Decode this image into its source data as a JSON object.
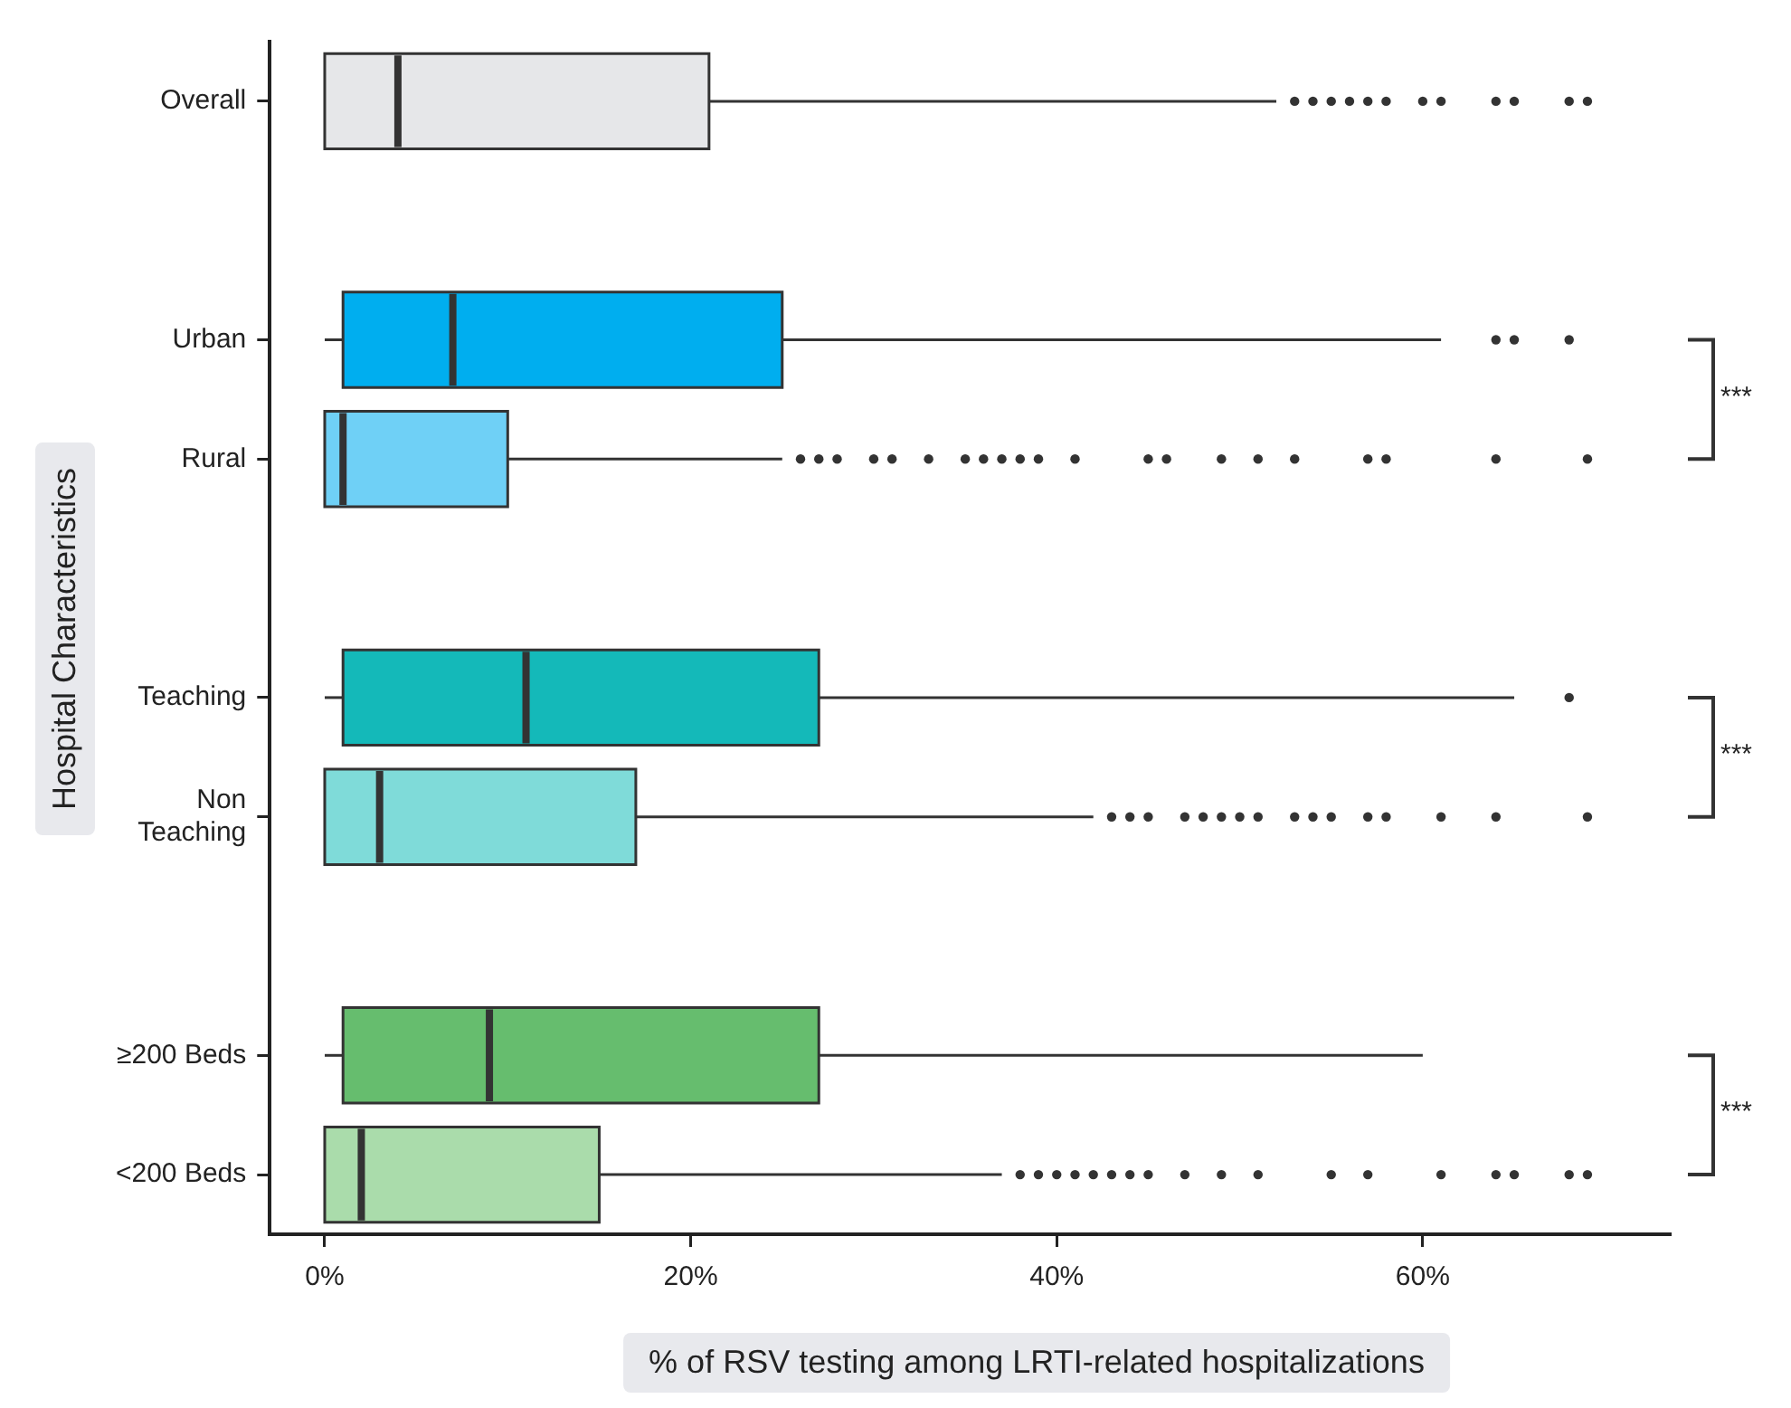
{
  "chart_data": {
    "type": "box",
    "orientation": "horizontal",
    "xlabel": "% of RSV testing among LRTI-related hospitalizations",
    "ylabel": "Hospital Characteristics",
    "categories": [
      "Overall",
      null,
      "Urban",
      "Rural",
      null,
      "Teaching",
      "Non Teaching",
      null,
      "≥200 Beds",
      "<200 Beds"
    ],
    "colors": [
      "#e6e7e9",
      null,
      "#00aeef",
      "#6fd0f6",
      null,
      "#14b9b9",
      "#7fdbd9",
      null,
      "#66bd6e",
      "#aadcab"
    ],
    "boxes": [
      {
        "q1": 0,
        "median": 4,
        "q3": 21,
        "high": 52,
        "outliers": [
          53,
          54,
          55,
          56,
          57,
          58,
          60,
          61,
          64,
          65,
          68,
          69
        ]
      },
      null,
      {
        "low": 0,
        "q1": 1,
        "median": 7,
        "q3": 25,
        "high": 61,
        "outliers": [
          64,
          65,
          68
        ]
      },
      {
        "q1": 0,
        "median": 1,
        "q3": 10,
        "high": 25,
        "outliers": [
          26,
          27,
          28,
          30,
          31,
          33,
          35,
          36,
          37,
          38,
          39,
          41,
          45,
          46,
          49,
          51,
          53,
          57,
          58,
          64,
          69
        ]
      },
      null,
      {
        "low": 0,
        "q1": 1,
        "median": 11,
        "q3": 27,
        "high": 65,
        "outliers": [
          68
        ]
      },
      {
        "q1": 0,
        "median": 3,
        "q3": 17,
        "high": 42,
        "outliers": [
          43,
          44,
          45,
          47,
          48,
          49,
          50,
          51,
          53,
          54,
          55,
          57,
          58,
          61,
          64,
          69
        ]
      },
      null,
      {
        "low": 0,
        "q1": 1,
        "median": 9,
        "q3": 27,
        "high": 60
      },
      {
        "q1": 0,
        "median": 2,
        "q3": 15,
        "high": 37,
        "outliers": [
          38,
          39,
          40,
          41,
          42,
          43,
          44,
          45,
          47,
          49,
          51,
          55,
          57,
          61,
          64,
          65,
          68,
          69
        ]
      }
    ],
    "xlim": [
      -3,
      73.5
    ],
    "xticks": [
      {
        "value": 0,
        "label": "0%"
      },
      {
        "value": 20,
        "label": "20%"
      },
      {
        "value": 40,
        "label": "40%"
      },
      {
        "value": 60,
        "label": "60%"
      }
    ],
    "annotations": [
      "***",
      "***",
      "***"
    ],
    "grid": false
  }
}
